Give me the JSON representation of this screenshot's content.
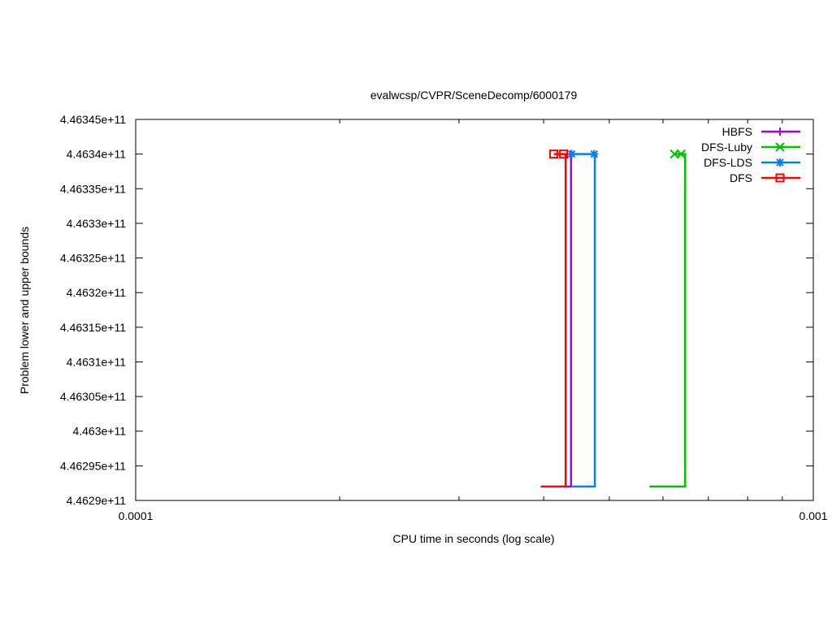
{
  "chart_data": {
    "type": "line",
    "title": "evalwcsp/CVPR/SceneDecomp/6000179",
    "xlabel": "CPU time in seconds (log scale)",
    "ylabel": "Problem lower and upper bounds",
    "xscale": "log",
    "xlim": [
      0.0001,
      0.001
    ],
    "ylim": [
      446290000000,
      446345000000
    ],
    "x_ticks": [
      {
        "value": 0.0001,
        "label": "0.0001"
      },
      {
        "value": 0.001,
        "label": "0.001"
      }
    ],
    "x_minor_ticks": [
      0.0002,
      0.0003,
      0.0004,
      0.0005,
      0.0006,
      0.0007,
      0.0008,
      0.0009
    ],
    "y_ticks": [
      {
        "value": 446290000000,
        "label": "4.4629e+11"
      },
      {
        "value": 446295000000,
        "label": "4.46295e+11"
      },
      {
        "value": 446300000000,
        "label": "4.463e+11"
      },
      {
        "value": 446305000000,
        "label": "4.46305e+11"
      },
      {
        "value": 446310000000,
        "label": "4.4631e+11"
      },
      {
        "value": 446315000000,
        "label": "4.46315e+11"
      },
      {
        "value": 446320000000,
        "label": "4.4632e+11"
      },
      {
        "value": 446325000000,
        "label": "4.46325e+11"
      },
      {
        "value": 446330000000,
        "label": "4.4633e+11"
      },
      {
        "value": 446335000000,
        "label": "4.46335e+11"
      },
      {
        "value": 446340000000,
        "label": "4.4634e+11"
      },
      {
        "value": 446345000000,
        "label": "4.46345e+11"
      }
    ],
    "grid": false,
    "legend_position": "top-right",
    "series": [
      {
        "name": "HBFS",
        "color": "#a000ff",
        "marker": "plus",
        "line": [
          [
            0.000431,
            446292000000
          ],
          [
            0.000439,
            446292000000
          ],
          [
            0.000439,
            446340000000
          ]
        ],
        "markers": [
          [
            0.000439,
            446340000000
          ]
        ]
      },
      {
        "name": "DFS-Luby",
        "color": "#00c000",
        "marker": "cross",
        "line": [
          [
            0.000573,
            446292000000
          ],
          [
            0.000647,
            446292000000
          ],
          [
            0.000647,
            446340000000
          ],
          [
            0.000624,
            446340000000
          ]
        ],
        "markers": [
          [
            0.000624,
            446340000000
          ],
          [
            0.000638,
            446340000000
          ]
        ]
      },
      {
        "name": "DFS-LDS",
        "color": "#0080ff",
        "marker": "star",
        "line": [
          [
            0.000439,
            446292000000
          ],
          [
            0.000476,
            446292000000
          ],
          [
            0.000476,
            446340000000
          ],
          [
            0.000441,
            446340000000
          ]
        ],
        "markers": [
          [
            0.00044,
            446340000000
          ],
          [
            0.000475,
            446340000000
          ]
        ]
      },
      {
        "name": "DFS",
        "color": "#ff0000",
        "marker": "square",
        "line": [
          [
            0.000396,
            446292000000
          ],
          [
            0.000431,
            446292000000
          ],
          [
            0.000431,
            446340000000
          ],
          [
            0.000414,
            446340000000
          ]
        ],
        "markers": [
          [
            0.000414,
            446340000000
          ],
          [
            0.000428,
            446340000000
          ]
        ]
      }
    ]
  }
}
